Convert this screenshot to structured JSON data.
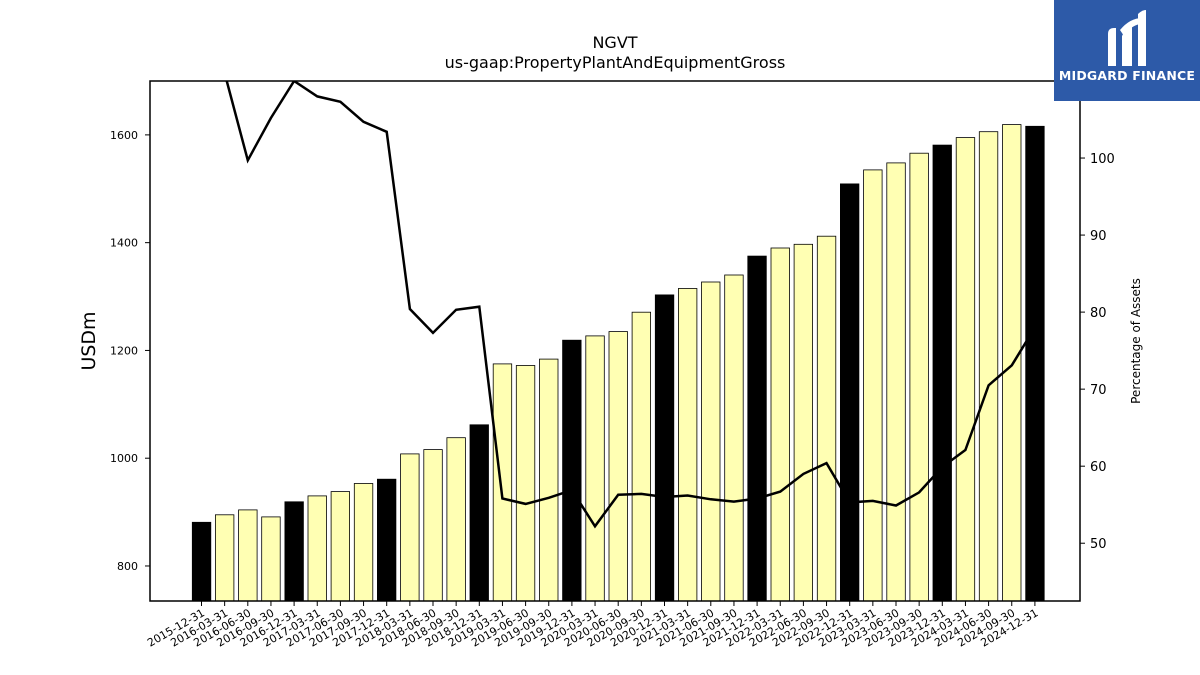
{
  "logo": {
    "text": "MIDGARD FINANCE"
  },
  "chart_data": {
    "type": "bar",
    "title": "NGVT",
    "subtitle": "us-gaap:PropertyPlantAndEquipmentGross",
    "ylabel": "USDm",
    "ylabel_right": "Percentage of Assets",
    "ylim": [
      735,
      1700
    ],
    "ylim_right": [
      42.5,
      110
    ],
    "yticks": [
      800,
      1000,
      1200,
      1400,
      1600
    ],
    "yticks_right": [
      50,
      60,
      70,
      80,
      90,
      100
    ],
    "categories": [
      "2015-12-31",
      "2016-03-31",
      "2016-06-30",
      "2016-09-30",
      "2016-12-31",
      "2017-03-31",
      "2017-06-30",
      "2017-09-30",
      "2017-12-31",
      "2018-03-31",
      "2018-06-30",
      "2018-09-30",
      "2018-12-31",
      "2019-03-31",
      "2019-06-30",
      "2019-09-30",
      "2019-12-31",
      "2020-03-31",
      "2020-06-30",
      "2020-09-30",
      "2020-12-31",
      "2021-03-31",
      "2021-06-30",
      "2021-09-30",
      "2021-12-31",
      "2022-03-31",
      "2022-06-30",
      "2022-09-30",
      "2022-12-31",
      "2023-03-31",
      "2023-06-30",
      "2023-09-30",
      "2023-12-31",
      "2024-03-31",
      "2024-06-30",
      "2024-09-30",
      "2024-12-31"
    ],
    "series": [
      {
        "kind": "bar",
        "values": [
          881,
          895,
          904,
          891,
          919,
          930,
          938,
          953,
          961,
          1008,
          1016,
          1038,
          1062,
          1175,
          1172,
          1184,
          1219,
          1227,
          1235,
          1271,
          1303,
          1315,
          1327,
          1340,
          1375,
          1390,
          1397,
          1412,
          1509,
          1535,
          1548,
          1566,
          1581,
          1595,
          1606,
          1619,
          1616
        ],
        "fill": "#ffffb3",
        "fill_year_end": "#000000"
      },
      {
        "kind": "line",
        "axis": "right",
        "values": [
          113,
          111,
          99.7,
          105.2,
          110,
          108,
          107.3,
          104.7,
          103.4,
          80.4,
          77.3,
          80.3,
          80.7,
          55.8,
          55.1,
          55.9,
          56.9,
          52.2,
          56.3,
          56.4,
          56,
          56.2,
          55.7,
          55.4,
          55.8,
          56.7,
          59,
          60.4,
          55.3,
          55.5,
          54.9,
          56.6,
          59.9,
          62.1,
          70.5,
          73.1,
          78
        ]
      }
    ],
    "colors": {
      "bar": "#ffffb3",
      "bar_year_end": "#000000",
      "line": "#000000",
      "logo_bg": "#2d5aa8"
    }
  }
}
